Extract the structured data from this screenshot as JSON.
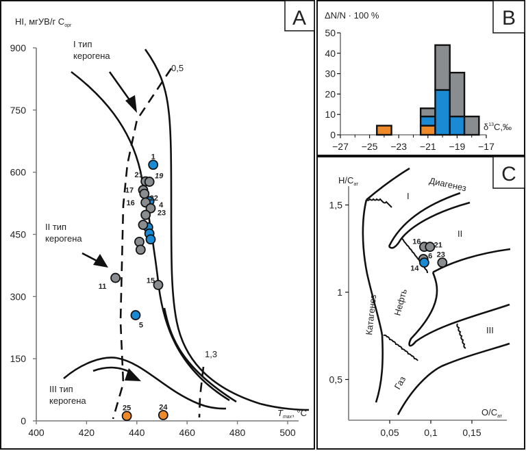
{
  "colors": {
    "gray": "#8a8d90",
    "blue": "#1a8ad4",
    "orange": "#ef8a2a",
    "outline": "#111111"
  },
  "chart_data": [
    {
      "panel": "A",
      "type": "scatter",
      "title": "A",
      "ylabel": "HI, мгУВ/г С",
      "ylabel_sub": "орг",
      "xlabel": "T",
      "xlabel_sub": "max",
      "xlabel_unit": ", °C",
      "xlim": [
        400,
        505
      ],
      "ylim": [
        0,
        900
      ],
      "xticks": [
        400,
        420,
        440,
        460,
        480,
        500
      ],
      "yticks": [
        0,
        150,
        300,
        450,
        600,
        750,
        900
      ],
      "annotations": {
        "type1": [
          "I тип",
          "керогена"
        ],
        "type2": [
          "II тип",
          "керогена"
        ],
        "type3": [
          "III тип",
          "керогена"
        ],
        "iso_05": "0,5",
        "iso_13": "1,3"
      },
      "points": [
        {
          "label": "1",
          "x": 446.5,
          "y": 618,
          "group": "blue"
        },
        {
          "label": "21",
          "x": 443.5,
          "y": 578,
          "group": "gray"
        },
        {
          "label": "19",
          "x": 445,
          "y": 577,
          "group": "gray"
        },
        {
          "label": "17",
          "x": 442.5,
          "y": 557,
          "group": "gray"
        },
        {
          "label": "22",
          "x": 443,
          "y": 548,
          "group": "gray"
        },
        {
          "label": "4",
          "x": 445,
          "y": 530,
          "group": "blue"
        },
        {
          "label": "16",
          "x": 443.5,
          "y": 527,
          "group": "gray"
        },
        {
          "label": "23",
          "x": 445.5,
          "y": 513,
          "group": "gray"
        },
        {
          "label": "",
          "x": 443.5,
          "y": 497,
          "group": "gray"
        },
        {
          "label": "",
          "x": 444.5,
          "y": 467,
          "group": "blue"
        },
        {
          "label": "",
          "x": 442.5,
          "y": 473,
          "group": "gray"
        },
        {
          "label": "",
          "x": 445,
          "y": 452,
          "group": "blue"
        },
        {
          "label": "",
          "x": 445.5,
          "y": 438,
          "group": "blue"
        },
        {
          "label": "",
          "x": 441,
          "y": 432,
          "group": "gray"
        },
        {
          "label": "",
          "x": 441.5,
          "y": 413,
          "group": "gray"
        },
        {
          "label": "11",
          "x": 431.5,
          "y": 345,
          "group": "gray"
        },
        {
          "label": "15",
          "x": 448.5,
          "y": 328,
          "group": "gray"
        },
        {
          "label": "5",
          "x": 439.5,
          "y": 255,
          "group": "blue"
        },
        {
          "label": "25",
          "x": 436,
          "y": 12,
          "group": "orange"
        },
        {
          "label": "24",
          "x": 450.5,
          "y": 14,
          "group": "orange"
        }
      ]
    },
    {
      "panel": "B",
      "type": "bar",
      "stacked": true,
      "title": "B",
      "ylabel": "ΔN/N · 100 %",
      "xlabel": "δ13C,‰",
      "xlim": [
        -27,
        -17
      ],
      "ylim": [
        0,
        50
      ],
      "xticks": [
        -27,
        -25,
        -23,
        -21,
        -19,
        -17
      ],
      "xtick_labels": [
        "−27",
        "−25",
        "−23",
        "−21",
        "−19",
        "−17"
      ],
      "yticks": [
        0,
        10,
        20,
        30,
        40,
        50
      ],
      "bins": [
        {
          "from": -24.5,
          "to": -23.5,
          "orange": 4.5,
          "blue": 0,
          "gray": 0
        },
        {
          "from": -21.5,
          "to": -20.5,
          "orange": 4.5,
          "blue": 4.5,
          "gray": 4
        },
        {
          "from": -20.5,
          "to": -19.5,
          "orange": 0,
          "blue": 22,
          "gray": 22
        },
        {
          "from": -19.5,
          "to": -18.5,
          "orange": 0,
          "blue": 9,
          "gray": 21.5
        },
        {
          "from": -18.5,
          "to": -17.5,
          "orange": 0,
          "blue": 0,
          "gray": 9
        }
      ]
    },
    {
      "panel": "C",
      "type": "scatter",
      "title": "C",
      "ylabel": "H/C",
      "ylabel_sub": "ат",
      "xlabel": "O/C",
      "xlabel_sub": "ат",
      "xticks": [
        0.05,
        0.1,
        0.15
      ],
      "xtick_labels": [
        "0,05",
        "0,1",
        "0,15"
      ],
      "yticks": [
        0.5,
        1,
        1.5
      ],
      "ytick_labels": [
        "0,5",
        "1",
        "1,5"
      ],
      "region_labels": {
        "I": "I",
        "II": "II",
        "III": "III",
        "diagenesis": "Диагенез",
        "catagenesis": "Катагенез",
        "oil": "Нефть",
        "gas": "Газ"
      },
      "points": [
        {
          "label": "16",
          "x": 0.092,
          "y": 1.26,
          "group": "gray"
        },
        {
          "label": "21",
          "x": 0.099,
          "y": 1.26,
          "group": "gray"
        },
        {
          "label": "6",
          "x": 0.091,
          "y": 1.19,
          "group": "gray"
        },
        {
          "label": "14",
          "x": 0.092,
          "y": 1.17,
          "group": "blue"
        },
        {
          "label": "23",
          "x": 0.114,
          "y": 1.17,
          "group": "gray"
        }
      ]
    }
  ]
}
